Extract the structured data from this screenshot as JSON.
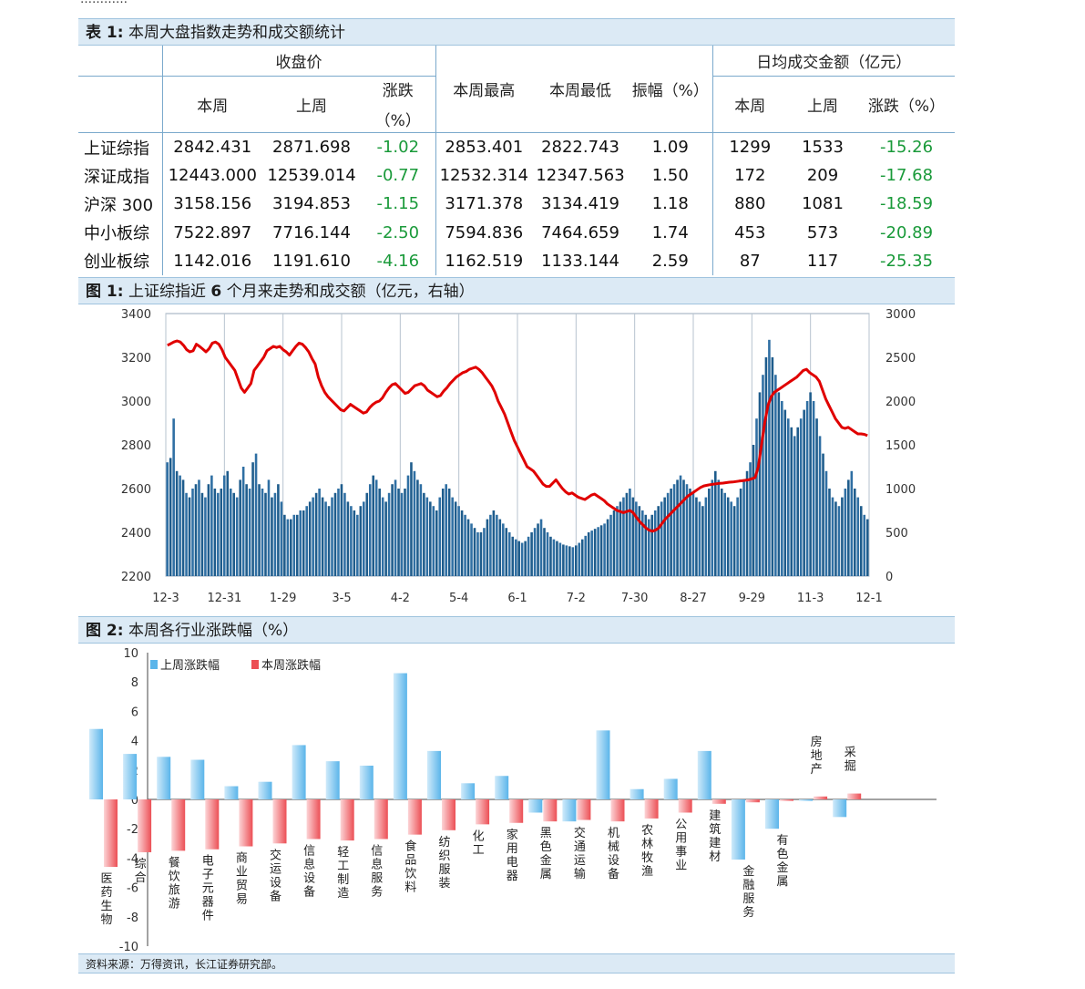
{
  "top_cut_text": "…………",
  "table1": {
    "caption_num": "表 1:",
    "caption_text": "本周大盘指数走势和成交额统计",
    "headers": {
      "close_group": "收盘价",
      "this_week": "本周",
      "last_week": "上周",
      "change_line1": "涨跌",
      "change_line2": "（%）",
      "week_high": "本周最高",
      "week_low": "本周最低",
      "amplitude": "振幅（%）",
      "turnover_group": "日均成交金额（亿元）",
      "t_this_week": "本周",
      "t_last_week": "上周",
      "t_change": "涨跌（%）"
    },
    "rows": [
      {
        "name": "上证综指",
        "close": "2842.431",
        "prev": "2871.698",
        "chg": "-1.02",
        "high": "2853.401",
        "low": "2822.743",
        "amp": "1.09",
        "t_now": "1299",
        "t_prev": "1533",
        "t_chg": "-15.26"
      },
      {
        "name": "深证成指",
        "close": "12443.000",
        "prev": "12539.014",
        "chg": "-0.77",
        "high": "12532.314",
        "low": "12347.563",
        "amp": "1.50",
        "t_now": "172",
        "t_prev": "209",
        "t_chg": "-17.68"
      },
      {
        "name": "沪深 300",
        "close": "3158.156",
        "prev": "3194.853",
        "chg": "-1.15",
        "high": "3171.378",
        "low": "3134.419",
        "amp": "1.18",
        "t_now": "880",
        "t_prev": "1081",
        "t_chg": "-18.59"
      },
      {
        "name": "中小板综",
        "close": "7522.897",
        "prev": "7716.144",
        "chg": "-2.50",
        "high": "7594.836",
        "low": "7464.659",
        "amp": "1.74",
        "t_now": "453",
        "t_prev": "573",
        "t_chg": "-20.89"
      },
      {
        "name": "创业板综",
        "close": "1142.016",
        "prev": "1191.610",
        "chg": "-4.16",
        "high": "1162.519",
        "low": "1133.144",
        "amp": "2.59",
        "t_now": "87",
        "t_prev": "117",
        "t_chg": "-25.35"
      }
    ]
  },
  "figure1": {
    "caption_num": "图 1:",
    "caption_text_a": "上证综指近",
    "caption_text_b": "6",
    "caption_text_c": "个月来走势和成交额（亿元，右轴）",
    "colors": {
      "line": "#e00000",
      "bar": "#1e5c8c",
      "bar_hi": "#2f6fa3"
    }
  },
  "figure2": {
    "caption_num": "图 2:",
    "caption_text": "本周各行业涨跌幅（%）",
    "colors": {
      "last": "#5bb5ea",
      "this": "#ec4f55"
    }
  },
  "chart_data": [
    {
      "type": "line+bar",
      "title": "",
      "x_ticks": [
        "12-3",
        "12-31",
        "1-29",
        "3-5",
        "4-2",
        "5-4",
        "6-1",
        "7-2",
        "7-30",
        "8-27",
        "9-29",
        "11-3",
        "12-1"
      ],
      "left_axis": {
        "ylim": [
          2200,
          3400
        ],
        "ticks": [
          2200,
          2400,
          2600,
          2800,
          3000,
          3200,
          3400
        ]
      },
      "right_axis": {
        "ylim": [
          0,
          3000
        ],
        "ticks": [
          0,
          500,
          1000,
          1500,
          2000,
          2500,
          3000
        ]
      },
      "series": [
        {
          "name": "",
          "axis": "left",
          "type": "line",
          "values": [
            3255,
            3262,
            3270,
            3275,
            3270,
            3255,
            3235,
            3225,
            3230,
            3260,
            3250,
            3238,
            3225,
            3240,
            3265,
            3270,
            3260,
            3235,
            3200,
            3180,
            3160,
            3140,
            3100,
            3060,
            3040,
            3060,
            3080,
            3140,
            3160,
            3180,
            3200,
            3230,
            3240,
            3250,
            3245,
            3250,
            3235,
            3225,
            3210,
            3230,
            3250,
            3265,
            3260,
            3245,
            3225,
            3195,
            3170,
            3110,
            3070,
            3040,
            3020,
            3005,
            2990,
            2975,
            2960,
            2955,
            2970,
            2985,
            2975,
            2965,
            2955,
            2945,
            2950,
            2970,
            2985,
            2995,
            3000,
            3015,
            3040,
            3060,
            3075,
            3080,
            3065,
            3050,
            3035,
            3040,
            3055,
            3070,
            3075,
            3080,
            3070,
            3050,
            3040,
            3030,
            3020,
            3025,
            3045,
            3060,
            3080,
            3095,
            3110,
            3120,
            3130,
            3135,
            3145,
            3150,
            3155,
            3145,
            3130,
            3110,
            3090,
            3070,
            3040,
            3000,
            2970,
            2940,
            2900,
            2860,
            2820,
            2790,
            2760,
            2730,
            2700,
            2690,
            2680,
            2660,
            2640,
            2620,
            2610,
            2610,
            2625,
            2640,
            2620,
            2600,
            2585,
            2575,
            2580,
            2570,
            2560,
            2555,
            2550,
            2560,
            2570,
            2575,
            2565,
            2555,
            2545,
            2530,
            2520,
            2510,
            2500,
            2495,
            2490,
            2495,
            2500,
            2490,
            2470,
            2450,
            2435,
            2420,
            2410,
            2405,
            2410,
            2420,
            2440,
            2460,
            2475,
            2490,
            2505,
            2520,
            2535,
            2550,
            2565,
            2575,
            2585,
            2595,
            2605,
            2612,
            2615,
            2618,
            2620,
            2622,
            2624,
            2625,
            2627,
            2629,
            2630,
            2632,
            2634,
            2636,
            2638,
            2640,
            2645,
            2650,
            2700,
            2800,
            2900,
            2980,
            3020,
            3040,
            3050,
            3060,
            3070,
            3080,
            3090,
            3100,
            3110,
            3125,
            3140,
            3145,
            3130,
            3120,
            3110,
            3090,
            3050,
            3010,
            2980,
            2950,
            2920,
            2900,
            2880,
            2875,
            2880,
            2870,
            2860,
            2850,
            2850,
            2848,
            2842
          ]
        },
        {
          "name": "",
          "axis": "right",
          "type": "bar",
          "values": [
            1300,
            1350,
            1800,
            1200,
            1150,
            1100,
            950,
            900,
            1000,
            1050,
            1100,
            950,
            900,
            1050,
            1150,
            1000,
            950,
            1000,
            1150,
            1200,
            1000,
            950,
            900,
            1100,
            1250,
            1050,
            1000,
            1300,
            1400,
            1050,
            1000,
            950,
            1100,
            900,
            950,
            1050,
            850,
            700,
            650,
            650,
            700,
            700,
            750,
            750,
            800,
            850,
            900,
            950,
            1000,
            900,
            850,
            800,
            900,
            950,
            1000,
            1050,
            950,
            850,
            800,
            750,
            700,
            800,
            850,
            950,
            1050,
            1150,
            1100,
            1000,
            900,
            850,
            950,
            1050,
            1100,
            1000,
            950,
            1000,
            1150,
            1300,
            1200,
            1100,
            1050,
            950,
            900,
            850,
            800,
            750,
            900,
            1000,
            1050,
            1000,
            900,
            850,
            800,
            750,
            700,
            650,
            600,
            550,
            500,
            500,
            550,
            650,
            700,
            750,
            700,
            650,
            600,
            550,
            500,
            450,
            420,
            400,
            380,
            400,
            450,
            500,
            550,
            600,
            650,
            550,
            500,
            450,
            420,
            400,
            380,
            360,
            350,
            340,
            330,
            350,
            380,
            420,
            460,
            500,
            520,
            540,
            560,
            580,
            600,
            650,
            700,
            750,
            800,
            850,
            900,
            950,
            1000,
            900,
            850,
            800,
            750,
            700,
            650,
            700,
            750,
            800,
            850,
            900,
            950,
            1000,
            1050,
            1100,
            1150,
            1100,
            1050,
            1000,
            950,
            900,
            850,
            800,
            900,
            1000,
            1100,
            1200,
            1100,
            1000,
            950,
            900,
            850,
            800,
            900,
            1000,
            1100,
            1200,
            1300,
            1500,
            1800,
            2100,
            2300,
            2500,
            2700,
            2500,
            2300,
            2100,
            2000,
            1900,
            1800,
            1700,
            1600,
            1700,
            1800,
            1900,
            2000,
            2100,
            2000,
            1800,
            1600,
            1400,
            1200,
            1000,
            900,
            850,
            800,
            900,
            1000,
            1100,
            1200,
            1000,
            900,
            800,
            700,
            650
          ]
        }
      ]
    },
    {
      "type": "bar",
      "title": "",
      "categories": [
        "医药生物",
        "综合",
        "餐饮旅游",
        "电子元器件",
        "商业贸易",
        "交运设备",
        "信息设备",
        "轻工制造",
        "信息服务",
        "食品饮料",
        "纺织服装",
        "化工",
        "家用电器",
        "黑色金属",
        "交通运输",
        "机械设备",
        "农林牧渔",
        "公用事业",
        "建筑建材",
        "金融服务",
        "有色金属",
        "房地产",
        "采掘"
      ],
      "ylim": [
        -10,
        10
      ],
      "y_ticks": [
        -10,
        -8,
        -6,
        -4,
        -2,
        0,
        2,
        4,
        6,
        8,
        10
      ],
      "series": [
        {
          "name": "上周涨跌幅",
          "values": [
            4.8,
            3.1,
            2.9,
            2.7,
            0.9,
            1.2,
            3.7,
            2.6,
            2.3,
            8.6,
            3.3,
            1.1,
            1.6,
            -0.9,
            -1.5,
            4.7,
            0.7,
            1.4,
            3.3,
            -4.1,
            -2.0,
            -0.1,
            -1.2
          ]
        },
        {
          "name": "本周涨跌幅",
          "values": [
            -4.6,
            -3.6,
            -3.5,
            -3.4,
            -3.2,
            -3.0,
            -2.7,
            -2.8,
            -2.7,
            -2.4,
            -2.1,
            -1.7,
            -1.6,
            -1.5,
            -1.4,
            -1.5,
            -1.3,
            -0.9,
            -0.3,
            -0.2,
            -0.1,
            0.2,
            0.4
          ]
        }
      ]
    }
  ],
  "source_text": "资料来源：万得资讯，长江证券研究部。"
}
